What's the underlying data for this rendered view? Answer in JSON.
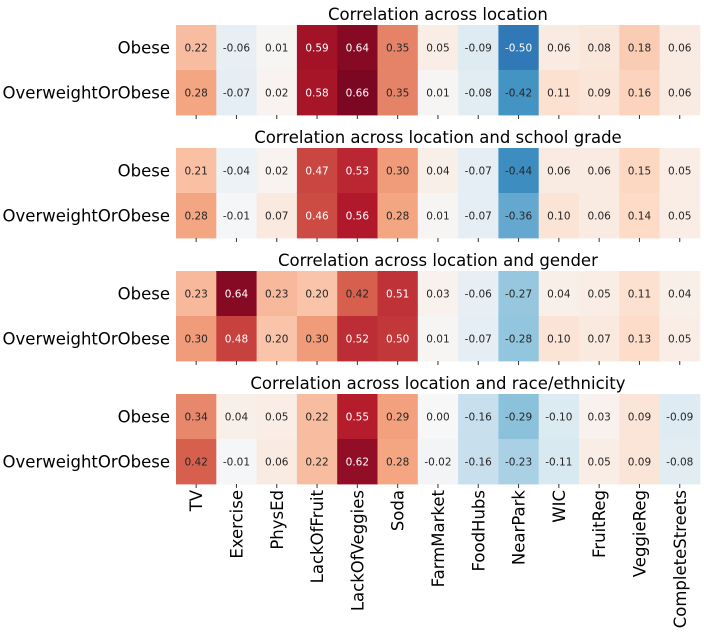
{
  "chart_data": {
    "type": "heatmap",
    "columns": [
      "TV",
      "Exercise",
      "PhysEd",
      "LackOfFruit",
      "LackOfVeggies",
      "Soda",
      "FarmMarket",
      "FoodHubs",
      "NearPark",
      "WIC",
      "FruitReg",
      "VeggieReg",
      "CompleteStreets"
    ],
    "rows": [
      "Obese",
      "OverweightOrObese"
    ],
    "color_range": [
      -0.7,
      0.7
    ],
    "colormap": "RdBu_r",
    "panels": [
      {
        "title": "Correlation across location",
        "values": [
          [
            0.22,
            -0.06,
            0.01,
            0.59,
            0.64,
            0.35,
            0.05,
            -0.09,
            -0.5,
            0.06,
            0.08,
            0.18,
            0.06
          ],
          [
            0.28,
            -0.07,
            0.02,
            0.58,
            0.66,
            0.35,
            0.01,
            -0.08,
            -0.42,
            0.11,
            0.09,
            0.16,
            0.06
          ]
        ]
      },
      {
        "title": "Correlation across location and school grade",
        "values": [
          [
            0.21,
            -0.04,
            0.02,
            0.47,
            0.53,
            0.3,
            0.04,
            -0.07,
            -0.44,
            0.06,
            0.06,
            0.15,
            0.05
          ],
          [
            0.28,
            -0.01,
            0.07,
            0.46,
            0.56,
            0.28,
            0.01,
            -0.07,
            -0.36,
            0.1,
            0.06,
            0.14,
            0.05
          ]
        ]
      },
      {
        "title": "Correlation across location and gender",
        "values": [
          [
            0.23,
            0.64,
            0.23,
            0.2,
            0.42,
            0.51,
            0.03,
            -0.06,
            -0.27,
            0.04,
            0.05,
            0.11,
            0.04
          ],
          [
            0.3,
            0.48,
            0.2,
            0.3,
            0.52,
            0.5,
            0.01,
            -0.07,
            -0.28,
            0.1,
            0.07,
            0.13,
            0.05
          ]
        ]
      },
      {
        "title": "Correlation across location and race/ethnicity",
        "values": [
          [
            0.34,
            0.04,
            0.05,
            0.22,
            0.55,
            0.29,
            0.0,
            -0.16,
            -0.29,
            -0.1,
            0.03,
            0.09,
            -0.09
          ],
          [
            0.42,
            -0.01,
            0.06,
            0.22,
            0.62,
            0.28,
            -0.02,
            -0.16,
            -0.23,
            -0.11,
            0.05,
            0.09,
            -0.08
          ]
        ]
      }
    ]
  }
}
